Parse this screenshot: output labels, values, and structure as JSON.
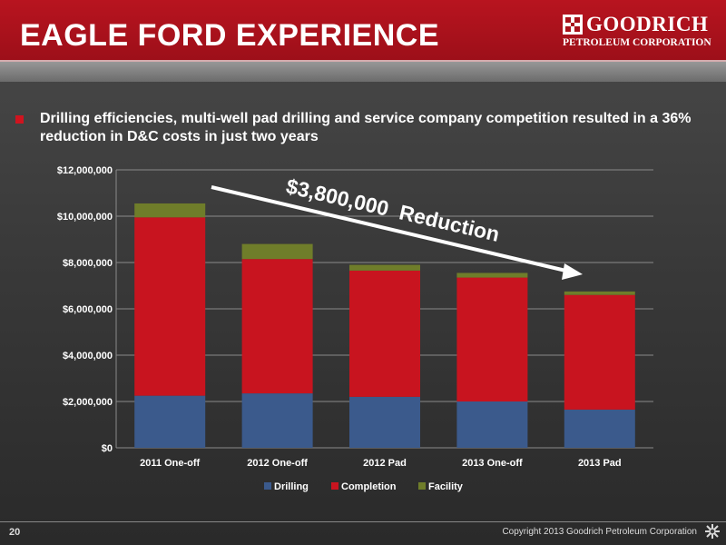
{
  "slide": {
    "title": "EAGLE FORD EXPERIENCE",
    "logo_word": "GOODRICH",
    "logo_sub": "PETROLEUM CORPORATION",
    "bullet": "Drilling efficiencies, multi-well pad drilling and service company competition resulted in a 36% reduction in D&C costs in just two years",
    "page_number": "20",
    "copyright": "Copyright 2013 Goodrich Petroleum Corporation",
    "annotation": "$3,800,000  Reduction"
  },
  "colors": {
    "header_red": "#a8121c",
    "drilling": "#3b5a8c",
    "completion": "#c8141f",
    "facility": "#6f7d2a"
  },
  "chart_data": {
    "type": "bar",
    "stacked": true,
    "categories": [
      "2011 One-off",
      "2012 One-off",
      "2012 Pad",
      "2013 One-off",
      "2013 Pad"
    ],
    "series": [
      {
        "name": "Drilling",
        "color": "#3b5a8c",
        "values": [
          2250000,
          2350000,
          2200000,
          2000000,
          1650000
        ]
      },
      {
        "name": "Completion",
        "color": "#c8141f",
        "values": [
          7700000,
          5800000,
          5450000,
          5350000,
          4950000
        ]
      },
      {
        "name": "Facility",
        "color": "#6f7d2a",
        "values": [
          600000,
          650000,
          250000,
          200000,
          150000
        ]
      }
    ],
    "ylim": [
      0,
      12000000
    ],
    "yticks": [
      0,
      2000000,
      4000000,
      6000000,
      8000000,
      10000000,
      12000000
    ],
    "ytick_labels": [
      "$0",
      "$2,000,000",
      "$4,000,000",
      "$6,000,000",
      "$8,000,000",
      "$10,000,000",
      "$12,000,000"
    ],
    "grid": true,
    "legend": "bottom",
    "annotation": "$3,800,000  Reduction"
  }
}
